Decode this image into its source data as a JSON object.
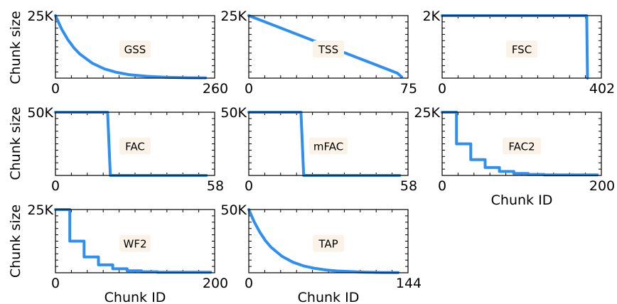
{
  "chart_data": [
    {
      "type": "line",
      "title": "",
      "panel_label": "GSS",
      "xlim": [
        0,
        260
      ],
      "ylim": [
        0,
        25000
      ],
      "x_tick_labels": [
        "0",
        "260"
      ],
      "y_tick_label": "25K",
      "series": [
        {
          "x": [
            0,
            10,
            20,
            30,
            40,
            60,
            80,
            100,
            120,
            150,
            180,
            220,
            245
          ],
          "values": [
            25000,
            19700,
            15500,
            12200,
            9600,
            6000,
            3700,
            2300,
            1400,
            700,
            350,
            150,
            100
          ]
        }
      ]
    },
    {
      "type": "line",
      "title": "",
      "panel_label": "TSS",
      "xlim": [
        0,
        75
      ],
      "ylim": [
        0,
        25000
      ],
      "x_tick_labels": [
        "0",
        "75"
      ],
      "y_tick_label": "25K",
      "series": [
        {
          "x": [
            0,
            70,
            72
          ],
          "values": [
            25000,
            2000,
            500
          ]
        }
      ]
    },
    {
      "type": "line",
      "title": "",
      "panel_label": "FSC",
      "xlim": [
        0,
        402
      ],
      "ylim": [
        0,
        2000
      ],
      "x_tick_labels": [
        "0",
        "402"
      ],
      "y_tick_label": "2K",
      "series": [
        {
          "x": [
            0,
            365,
            367
          ],
          "values": [
            2000,
            2000,
            0
          ]
        }
      ]
    },
    {
      "type": "line",
      "title": "",
      "panel_label": "FAC",
      "xlim": [
        0,
        58
      ],
      "ylim": [
        0,
        50000
      ],
      "x_tick_labels": [
        "0",
        "58"
      ],
      "y_tick_label": "50K",
      "series": [
        {
          "x": [
            0,
            19,
            20,
            55
          ],
          "values": [
            50000,
            50000,
            0,
            0
          ]
        }
      ]
    },
    {
      "type": "line",
      "title": "",
      "panel_label": "mFAC",
      "xlim": [
        0,
        58
      ],
      "ylim": [
        0,
        50000
      ],
      "x_tick_labels": [
        "0",
        "58"
      ],
      "y_tick_label": "50K",
      "series": [
        {
          "x": [
            0,
            19,
            20,
            55
          ],
          "values": [
            50000,
            50000,
            0,
            0
          ]
        }
      ]
    },
    {
      "type": "line",
      "title": "",
      "panel_label": "FAC2",
      "xlim": [
        0,
        200
      ],
      "ylim": [
        0,
        25000
      ],
      "x_tick_labels": [
        "0",
        "200"
      ],
      "y_tick_label": "25K",
      "xlabel": "Chunk ID",
      "series": [
        {
          "x": [
            0,
            18,
            18,
            36,
            36,
            54,
            54,
            72,
            72,
            90,
            90,
            108,
            108,
            128,
            128,
            195
          ],
          "values": [
            25000,
            25000,
            12500,
            12500,
            6250,
            6250,
            3125,
            3125,
            1560,
            1560,
            780,
            780,
            390,
            390,
            200,
            200
          ]
        }
      ]
    },
    {
      "type": "line",
      "title": "",
      "panel_label": "WF2",
      "xlim": [
        0,
        200
      ],
      "ylim": [
        0,
        25000
      ],
      "x_tick_labels": [
        "0",
        "200"
      ],
      "y_tick_label": "25K",
      "xlabel": "Chunk ID",
      "ylabel": "Chunk size",
      "series": [
        {
          "x": [
            0,
            18,
            18,
            36,
            36,
            54,
            54,
            72,
            72,
            90,
            90,
            108,
            108,
            128,
            128,
            195
          ],
          "values": [
            25000,
            25000,
            12500,
            12500,
            6250,
            6250,
            3125,
            3125,
            1560,
            1560,
            780,
            780,
            390,
            390,
            200,
            200
          ]
        }
      ]
    },
    {
      "type": "line",
      "title": "",
      "panel_label": "TAP",
      "xlim": [
        0,
        144
      ],
      "ylim": [
        0,
        50000
      ],
      "x_tick_labels": [
        "0",
        "144"
      ],
      "y_tick_label": "50K",
      "xlabel": "Chunk ID",
      "series": [
        {
          "x": [
            0,
            5,
            10,
            15,
            20,
            30,
            40,
            50,
            60,
            70,
            80,
            100,
            120,
            135
          ],
          "values": [
            50000,
            40000,
            32000,
            25500,
            20300,
            13000,
            8300,
            5300,
            3400,
            2200,
            1400,
            600,
            250,
            150
          ]
        }
      ]
    }
  ],
  "row_ylabels": [
    "Chunk size",
    "Chunk size"
  ]
}
